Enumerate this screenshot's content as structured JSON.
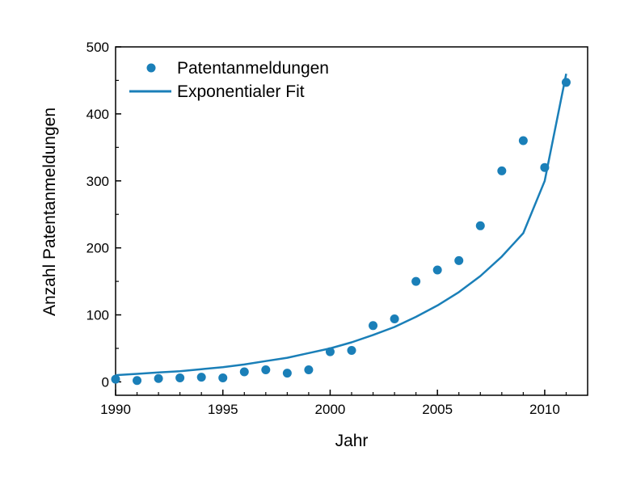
{
  "chart_data": {
    "type": "scatter",
    "xlabel": "Jahr",
    "ylabel": "Anzahl Patentanmeldungen",
    "xlim": [
      1990,
      2012
    ],
    "ylim": [
      -20,
      500
    ],
    "xticks": [
      1990,
      1995,
      2000,
      2005,
      2010
    ],
    "yticks": [
      0,
      100,
      200,
      300,
      400,
      500
    ],
    "grid": false,
    "legend_position": "top-left",
    "color": "#1a7fb8",
    "series": [
      {
        "name": "Patentanmeldungen",
        "kind": "points",
        "x": [
          1990,
          1991,
          1992,
          1993,
          1994,
          1995,
          1996,
          1997,
          1998,
          1999,
          2000,
          2001,
          2002,
          2003,
          2004,
          2005,
          2006,
          2007,
          2008,
          2009,
          2010,
          2011
        ],
        "y": [
          4,
          2,
          5,
          6,
          7,
          6,
          15,
          18,
          13,
          18,
          45,
          47,
          84,
          94,
          150,
          167,
          181,
          233,
          315,
          360,
          320,
          447
        ]
      },
      {
        "name": "Exponentialer Fit",
        "kind": "line",
        "x": [
          1990,
          1991,
          1992,
          1993,
          1994,
          1995,
          1996,
          1997,
          1998,
          1999,
          2000,
          2001,
          2002,
          2003,
          2004,
          2005,
          2006,
          2007,
          2008,
          2009,
          2010,
          2011
        ],
        "y": [
          10,
          12,
          14,
          16,
          19,
          22,
          26,
          31,
          36,
          43,
          50,
          59,
          70,
          82,
          97,
          114,
          134,
          158,
          187,
          222,
          300,
          460
        ]
      }
    ]
  }
}
